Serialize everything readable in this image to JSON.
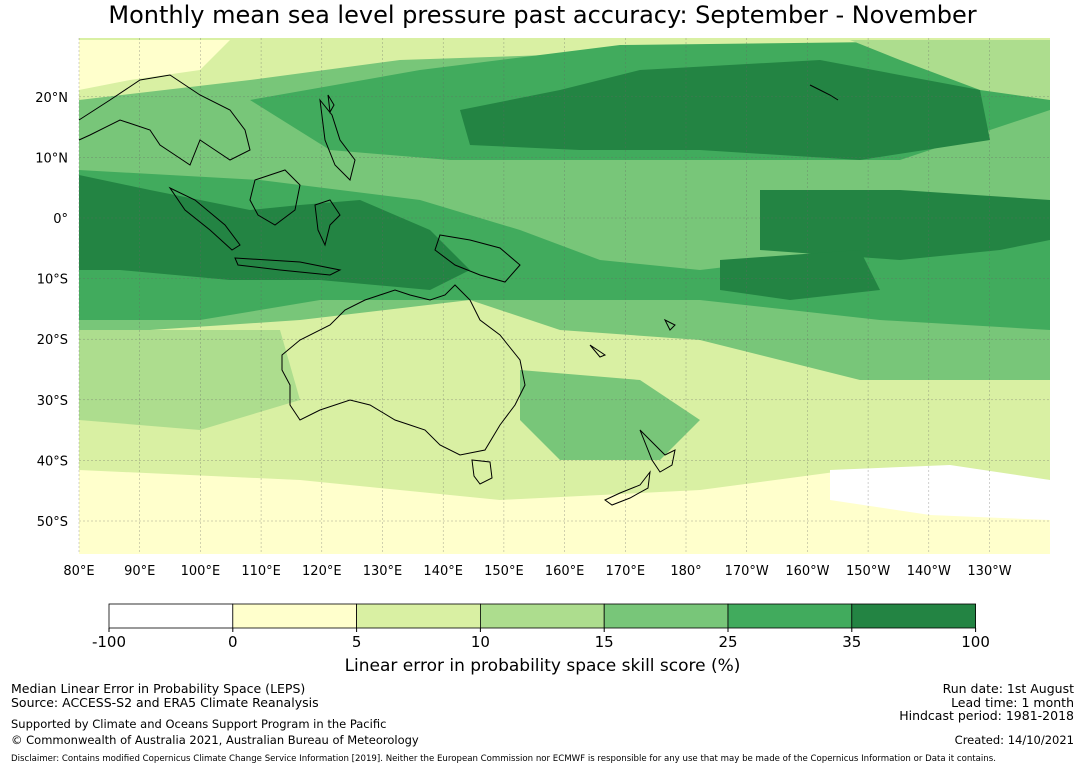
{
  "title": "Monthly mean sea level pressure past accuracy: September - November",
  "map": {
    "lon_labels": [
      "80°E",
      "90°E",
      "100°E",
      "110°E",
      "120°E",
      "130°E",
      "140°E",
      "150°E",
      "160°E",
      "170°E",
      "180°",
      "170°W",
      "160°W",
      "150°W",
      "140°W",
      "130°W"
    ],
    "lat_labels": [
      "20°N",
      "10°N",
      "0°",
      "10°S",
      "20°S",
      "30°S",
      "40°S",
      "50°S"
    ],
    "extent": {
      "lon": [
        80,
        240
      ],
      "lat": [
        -55,
        30
      ]
    }
  },
  "colorbar": {
    "ticks": [
      "-100",
      "0",
      "5",
      "10",
      "15",
      "25",
      "35",
      "100"
    ],
    "colors": [
      "#ffffff",
      "#ffffcc",
      "#d9f0a3",
      "#addd8e",
      "#78c679",
      "#41ab5d",
      "#238443"
    ],
    "label": "Linear error in probability space skill score (%)"
  },
  "info": {
    "line1": "Median Linear Error in Probability Space (LEPS)",
    "line2": "Source: ACCESS-S2 and ERA5 Climate Reanalysis",
    "line3": "Supported by Climate and Oceans Support Program in the Pacific",
    "line4": "© Commonwealth of Australia 2021, Australian Bureau of Meteorology",
    "run_date": "Run date: 1st August",
    "lead_time": "Lead time: 1 month",
    "hindcast": "Hindcast period: 1981-2018",
    "created": "Created: 14/10/2021",
    "disclaimer": "Disclaimer: Contains modified Copernicus Climate Change Service Information [2019]. Neither the European Commission nor ECMWF is responsible for any use that may be made of the Copernicus Information or Data it contains."
  }
}
